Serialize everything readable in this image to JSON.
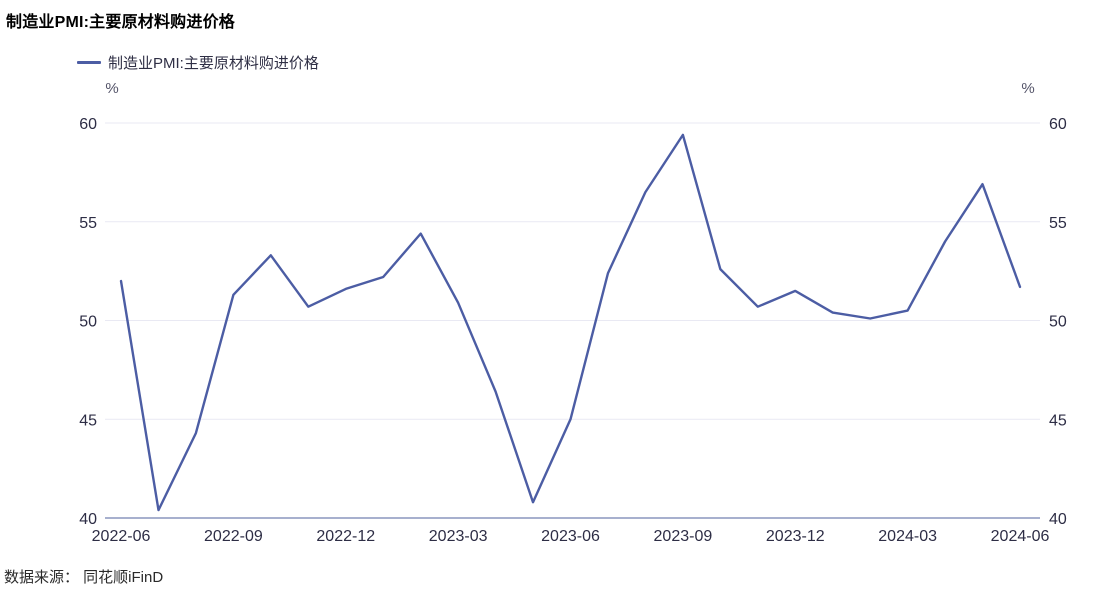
{
  "title": "制造业PMI:主要原材料购进价格",
  "legend": {
    "label": "制造业PMI:主要原材料购进价格"
  },
  "source": "数据来源： 同花顺iFinD",
  "chart_data": {
    "type": "line",
    "title": "制造业PMI:主要原材料购进价格",
    "unit": "%",
    "xlabel": "",
    "ylabel": "%",
    "ylim": [
      40,
      60
    ],
    "yticks": [
      40,
      45,
      50,
      55,
      60
    ],
    "grid": true,
    "legend_position": "top-left",
    "x": [
      "2022-06",
      "2022-07",
      "2022-08",
      "2022-09",
      "2022-10",
      "2022-11",
      "2022-12",
      "2023-01",
      "2023-02",
      "2023-03",
      "2023-04",
      "2023-05",
      "2023-06",
      "2023-07",
      "2023-08",
      "2023-09",
      "2023-10",
      "2023-11",
      "2023-12",
      "2024-01",
      "2024-02",
      "2024-03",
      "2024-04",
      "2024-05",
      "2024-06"
    ],
    "x_tick_labels": [
      "2022-06",
      "2022-09",
      "2022-12",
      "2023-03",
      "2023-06",
      "2023-09",
      "2023-12",
      "2024-03",
      "2024-06"
    ],
    "series": [
      {
        "name": "制造业PMI:主要原材料购进价格",
        "values": [
          52.0,
          40.4,
          44.3,
          51.3,
          53.3,
          50.7,
          51.6,
          52.2,
          54.4,
          50.9,
          46.4,
          40.8,
          45.0,
          52.4,
          56.5,
          59.4,
          52.6,
          50.7,
          51.5,
          50.4,
          50.1,
          50.5,
          54.0,
          56.9,
          51.7
        ]
      }
    ],
    "colors": {
      "line": "#4c5da4",
      "grid": "#e9e9f3",
      "axis": "#a7b0ce",
      "tick_text": "#2d2d45",
      "unit_text": "#55556a"
    }
  }
}
